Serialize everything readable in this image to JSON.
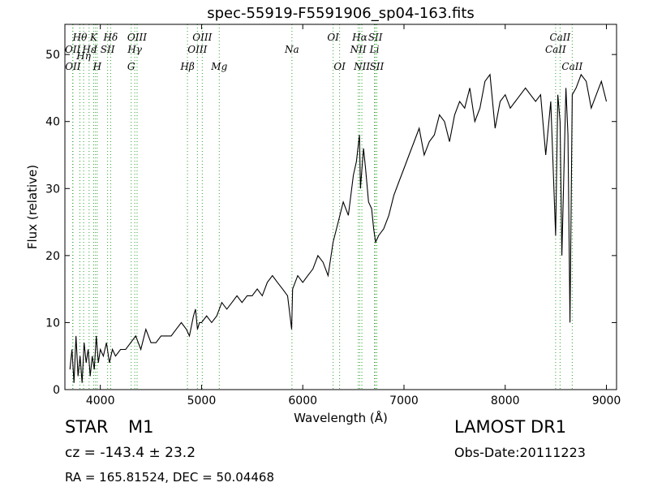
{
  "header": {
    "title": "spec-55919-F5591906_sp04-163.fits"
  },
  "info": {
    "object_class": "STAR",
    "object_subclass": "M1",
    "survey": "LAMOST DR1",
    "redshift_text": "cz = -143.4  ± 23.2",
    "obs_date_text": "Obs-Date:20111223",
    "coords_text": "RA = 165.81524, DEC = 50.04468"
  },
  "colors": {
    "spectrum": "#000000",
    "line_markers": "#2ca02c",
    "axes": "#000000",
    "background": "#ffffff"
  },
  "chart_data": {
    "type": "line",
    "title": "spec-55919-F5591906_sp04-163.fits",
    "xlabel": "Wavelength (Å)",
    "ylabel": "Flux (relative)",
    "xlim": [
      3650,
      9100
    ],
    "ylim": [
      0,
      54.5
    ],
    "xticks": [
      4000,
      5000,
      6000,
      7000,
      8000,
      9000
    ],
    "yticks": [
      0,
      10,
      20,
      30,
      40,
      50
    ],
    "grid": false,
    "series": [
      {
        "x": [
          3700,
          3720,
          3740,
          3760,
          3780,
          3800,
          3820,
          3840,
          3860,
          3880,
          3900,
          3920,
          3940,
          3960,
          3980,
          4000,
          4030,
          4060,
          4090,
          4120,
          4150,
          4200,
          4250,
          4300,
          4350,
          4400,
          4450,
          4500,
          4550,
          4600,
          4650,
          4700,
          4750,
          4800,
          4850,
          4880,
          4920,
          4940,
          4960,
          4980,
          5000,
          5050,
          5100,
          5150,
          5200,
          5250,
          5300,
          5350,
          5400,
          5450,
          5500,
          5550,
          5600,
          5650,
          5700,
          5750,
          5800,
          5850,
          5890,
          5900,
          5950,
          6000,
          6050,
          6100,
          6150,
          6200,
          6250,
          6300,
          6350,
          6400,
          6450,
          6500,
          6530,
          6560,
          6570,
          6600,
          6620,
          6650,
          6680,
          6700,
          6720,
          6750,
          6800,
          6850,
          6900,
          6950,
          7000,
          7050,
          7100,
          7150,
          7200,
          7250,
          7300,
          7350,
          7400,
          7450,
          7500,
          7550,
          7600,
          7650,
          7700,
          7750,
          7800,
          7850,
          7900,
          7950,
          8000,
          8050,
          8100,
          8150,
          8200,
          8250,
          8300,
          8350,
          8400,
          8450,
          8498,
          8520,
          8542,
          8560,
          8600,
          8620,
          8640,
          8662,
          8700,
          8750,
          8800,
          8850,
          8900,
          8950,
          9000
        ],
        "y": [
          3,
          6,
          1,
          8,
          2,
          5,
          1,
          7,
          4,
          6,
          2,
          5,
          3,
          8,
          4,
          6,
          5,
          7,
          4,
          6,
          5,
          6,
          6,
          7,
          8,
          6,
          9,
          7,
          7,
          8,
          8,
          8,
          9,
          10,
          9,
          8,
          11,
          12,
          9,
          10,
          10,
          11,
          10,
          11,
          13,
          12,
          13,
          14,
          13,
          14,
          14,
          15,
          14,
          16,
          17,
          16,
          15,
          14,
          9,
          15,
          17,
          16,
          17,
          18,
          20,
          19,
          17,
          22,
          25,
          28,
          26,
          32,
          34,
          38,
          30,
          36,
          33,
          28,
          27,
          24,
          22,
          23,
          24,
          26,
          29,
          31,
          33,
          35,
          37,
          39,
          35,
          37,
          38,
          41,
          40,
          37,
          41,
          43,
          42,
          45,
          40,
          42,
          46,
          47,
          39,
          43,
          44,
          42,
          43,
          44,
          45,
          44,
          43,
          44,
          35,
          43,
          23,
          44,
          40,
          20,
          45,
          38,
          10,
          44,
          45,
          47,
          46,
          42,
          44,
          46,
          43
        ],
        "values_note": ""
      }
    ],
    "spectral_lines": [
      {
        "label": "Hθ",
        "x": 3798,
        "pos": "top"
      },
      {
        "label": "OII",
        "x": 3727,
        "pos": "top2"
      },
      {
        "label": "OII",
        "x": 3729,
        "pos": "top3"
      },
      {
        "label": "Hε",
        "x": 3889,
        "pos": "top2"
      },
      {
        "label": "Hη",
        "x": 3835,
        "pos": "top2b"
      },
      {
        "label": "K",
        "x": 3934,
        "pos": "top"
      },
      {
        "label": "I",
        "x": 3952,
        "pos": "top2"
      },
      {
        "label": "H",
        "x": 3969,
        "pos": "top3"
      },
      {
        "label": "Hδ",
        "x": 4102,
        "pos": "top"
      },
      {
        "label": "SII",
        "x": 4072,
        "pos": "top2"
      },
      {
        "label": "OIII",
        "x": 4363,
        "pos": "top"
      },
      {
        "label": "Hγ",
        "x": 4340,
        "pos": "top2"
      },
      {
        "label": "G",
        "x": 4305,
        "pos": "top3"
      },
      {
        "label": "OIII",
        "x": 5007,
        "pos": "top"
      },
      {
        "label": "OIII",
        "x": 4959,
        "pos": "top2"
      },
      {
        "label": "Hβ",
        "x": 4861,
        "pos": "top3"
      },
      {
        "label": "Mg",
        "x": 5175,
        "pos": "top3"
      },
      {
        "label": "Na",
        "x": 5893,
        "pos": "top2"
      },
      {
        "label": "OI",
        "x": 6300,
        "pos": "top"
      },
      {
        "label": "OI",
        "x": 6364,
        "pos": "top3"
      },
      {
        "label": "Hα",
        "x": 6563,
        "pos": "top"
      },
      {
        "label": "NII",
        "x": 6548,
        "pos": "top2"
      },
      {
        "label": "NII",
        "x": 6584,
        "pos": "top3"
      },
      {
        "label": "SII",
        "x": 6717,
        "pos": "top"
      },
      {
        "label": "Li",
        "x": 6708,
        "pos": "top2"
      },
      {
        "label": "SII",
        "x": 6731,
        "pos": "top3"
      },
      {
        "label": "CaII",
        "x": 8542,
        "pos": "top"
      },
      {
        "label": "CaII",
        "x": 8498,
        "pos": "top2"
      },
      {
        "label": "CaII",
        "x": 8662,
        "pos": "top3"
      }
    ]
  }
}
